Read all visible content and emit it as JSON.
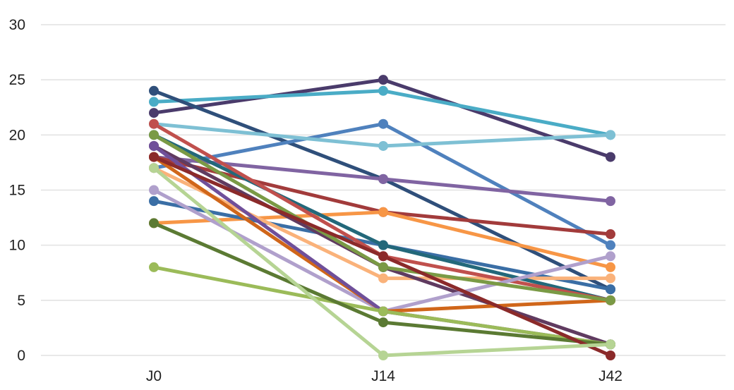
{
  "chart_data": {
    "type": "line",
    "title": "",
    "xlabel": "",
    "ylabel": "",
    "categories": [
      "J0",
      "J14",
      "J42"
    ],
    "ylim": [
      0,
      30
    ],
    "yticks": [
      "0",
      "5",
      "10",
      "15",
      "20",
      "25",
      "30"
    ],
    "grid": true,
    "markers": true,
    "series": [
      {
        "color": "#4a3b6b",
        "values": [
          22,
          25,
          18
        ]
      },
      {
        "color": "#4aacc6",
        "values": [
          23,
          24,
          20
        ]
      },
      {
        "color": "#2f4f7a",
        "values": [
          24,
          16,
          6
        ]
      },
      {
        "color": "#4f81bd",
        "values": [
          17,
          21,
          10
        ]
      },
      {
        "color": "#7ec0d4",
        "values": [
          21,
          19,
          20
        ]
      },
      {
        "color": "#8064a2",
        "values": [
          18,
          16,
          14
        ]
      },
      {
        "color": "#a23b3b",
        "values": [
          18,
          13,
          11
        ]
      },
      {
        "color": "#f79646",
        "values": [
          12,
          13,
          8
        ]
      },
      {
        "color": "#3a6ea5",
        "values": [
          14,
          10,
          6
        ]
      },
      {
        "color": "#fab27a",
        "values": [
          17,
          7,
          7
        ]
      },
      {
        "color": "#23687a",
        "values": [
          20,
          10,
          5
        ]
      },
      {
        "color": "#c0504d",
        "values": [
          21,
          9,
          5
        ]
      },
      {
        "color": "#603b60",
        "values": [
          19,
          8,
          1
        ]
      },
      {
        "color": "#b0a0cc",
        "values": [
          15,
          4,
          9
        ]
      },
      {
        "color": "#d0661a",
        "values": [
          18,
          4,
          5
        ]
      },
      {
        "color": "#6f4f9a",
        "values": [
          19,
          4,
          1
        ]
      },
      {
        "color": "#9bbb59",
        "values": [
          8,
          4,
          1
        ]
      },
      {
        "color": "#5b7a33",
        "values": [
          12,
          3,
          1
        ]
      },
      {
        "color": "#7a9a45",
        "values": [
          20,
          8,
          5
        ]
      },
      {
        "color": "#8b2a2a",
        "values": [
          18,
          9,
          0
        ]
      },
      {
        "color": "#b6d494",
        "values": [
          17,
          0,
          1
        ]
      }
    ]
  }
}
